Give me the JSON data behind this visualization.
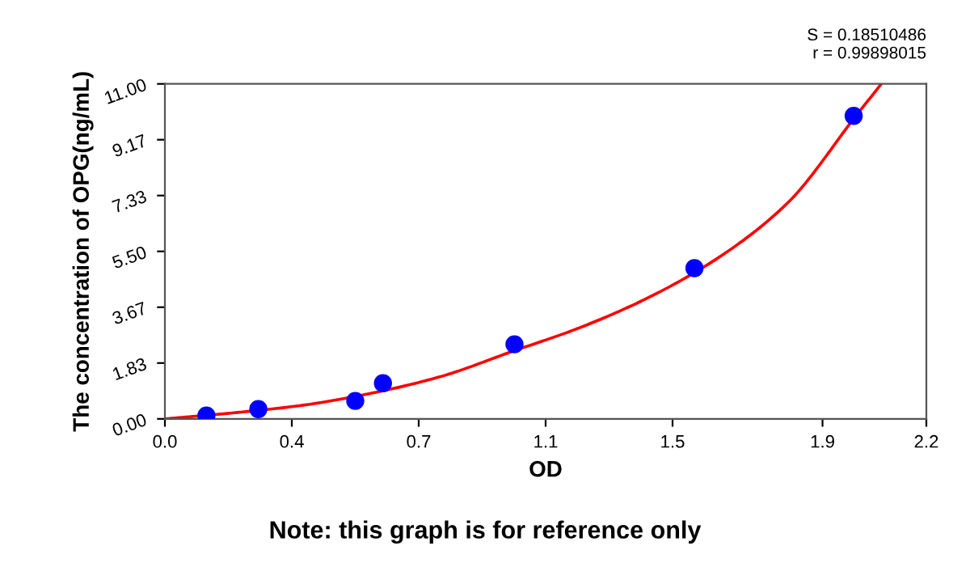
{
  "chart_data": {
    "type": "scatter",
    "xlabel": "OD",
    "ylabel": "The concentration of OPG(ng/mL)",
    "annotations": [
      "S = 0.18510486\nr = 0.99898015",
      "Note: this graph is for reference only"
    ],
    "xlim": [
      0,
      2.2
    ],
    "ylim": [
      0,
      11
    ],
    "xticks": [
      {
        "value": 0,
        "label": "0.0"
      },
      {
        "value": 0.3667,
        "label": "0.4"
      },
      {
        "value": 0.7333,
        "label": "0.7"
      },
      {
        "value": 1.1,
        "label": "1.1"
      },
      {
        "value": 1.4667,
        "label": "1.5"
      },
      {
        "value": 1.9,
        "label": "1.9"
      },
      {
        "value": 2.2,
        "label": "2.2"
      }
    ],
    "yticks": [
      {
        "value": 0,
        "label": "0.00"
      },
      {
        "value": 1.8333,
        "label": "1.83"
      },
      {
        "value": 3.6667,
        "label": "3.67"
      },
      {
        "value": 5.5,
        "label": "5.50"
      },
      {
        "value": 7.3333,
        "label": "7.33"
      },
      {
        "value": 9.1667,
        "label": "9.17"
      },
      {
        "value": 11,
        "label": "11.00"
      }
    ],
    "grid": false,
    "marker": "circle",
    "series": [
      {
        "color": "#0000ff",
        "x": [
          0.12,
          0.27,
          0.55,
          0.63,
          1.01,
          1.53,
          1.99
        ],
        "values": [
          0.11,
          0.32,
          0.59,
          1.17,
          2.45,
          4.95,
          9.95
        ]
      },
      {
        "type": "line",
        "color": "#ff0000",
        "line_style": "solid",
        "marker": "none",
        "x": [
          0,
          0.2,
          0.4,
          0.6,
          0.8,
          1.0,
          1.2,
          1.4,
          1.6,
          1.8,
          2.0,
          2.07
        ],
        "values": [
          0,
          0.2,
          0.45,
          0.85,
          1.4,
          2.2,
          3.0,
          4.0,
          5.3,
          7.1,
          10.0,
          11.0
        ]
      }
    ]
  }
}
